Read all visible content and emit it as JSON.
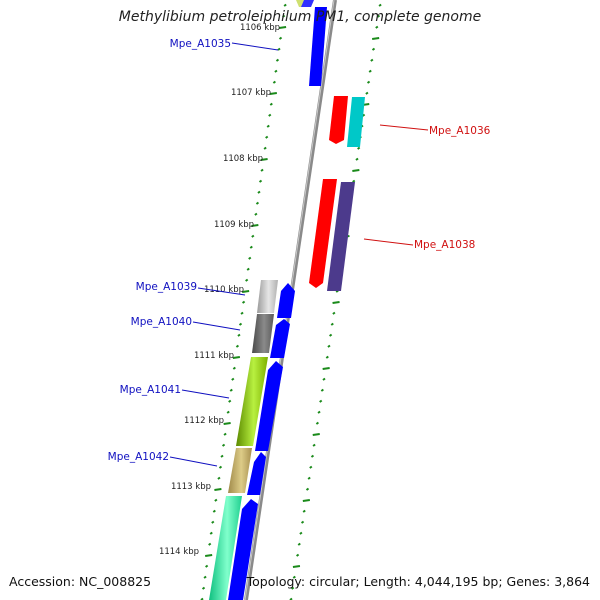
{
  "title": "Methylibium petroleiphilum PM1, complete genome",
  "footer": {
    "accession": "Accession: NC_008825",
    "summary": "Topology: circular; Length: 4,044,195 bp; Genes: 3,864"
  },
  "colors": {
    "backbone": "#8c8c8c",
    "ticks": "#1a8a1a",
    "forward_label": "#1010c0",
    "reverse_label": "#d01010"
  },
  "kbp_labels": [
    "1106 kbp",
    "1107 kbp",
    "1108 kbp",
    "1109 kbp",
    "1110 kbp",
    "1111 kbp",
    "1112 kbp",
    "1113 kbp",
    "1114 kbp"
  ],
  "gene_labels": [
    {
      "text": "Mpe_A1035",
      "strand": "forward"
    },
    {
      "text": "Mpe_A1036",
      "strand": "reverse"
    },
    {
      "text": "Mpe_A1038",
      "strand": "reverse"
    },
    {
      "text": "Mpe_A1039",
      "strand": "forward"
    },
    {
      "text": "Mpe_A1040",
      "strand": "forward"
    },
    {
      "text": "Mpe_A1041",
      "strand": "forward"
    },
    {
      "text": "Mpe_A1042",
      "strand": "forward"
    }
  ]
}
